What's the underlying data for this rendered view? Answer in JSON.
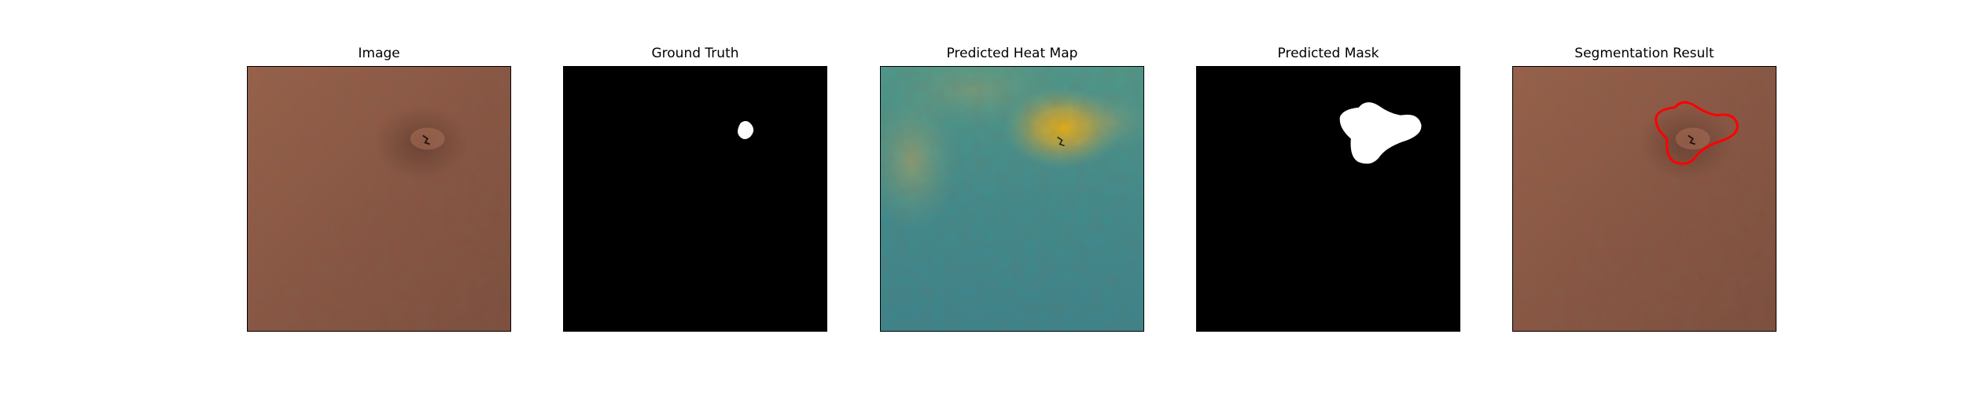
{
  "figure": {
    "background": "#ffffff",
    "panels": [
      {
        "title": "Image",
        "content": "leather-texture"
      },
      {
        "title": "Ground Truth",
        "content": "binary-mask"
      },
      {
        "title": "Predicted Heat Map",
        "content": "heatmap-overlay"
      },
      {
        "title": "Predicted Mask",
        "content": "binary-mask"
      },
      {
        "title": "Segmentation Result",
        "content": "leather-texture-with-contour"
      }
    ]
  },
  "colors": {
    "leather": "#8f5a45",
    "leather_dark": "#6f4535",
    "mask_background": "#000000",
    "mask_foreground": "#ffffff",
    "heat_low": "#3f8f90",
    "heat_mid": "#6aa384",
    "heat_high": "#e0b21c",
    "contour": "#ff0000"
  }
}
